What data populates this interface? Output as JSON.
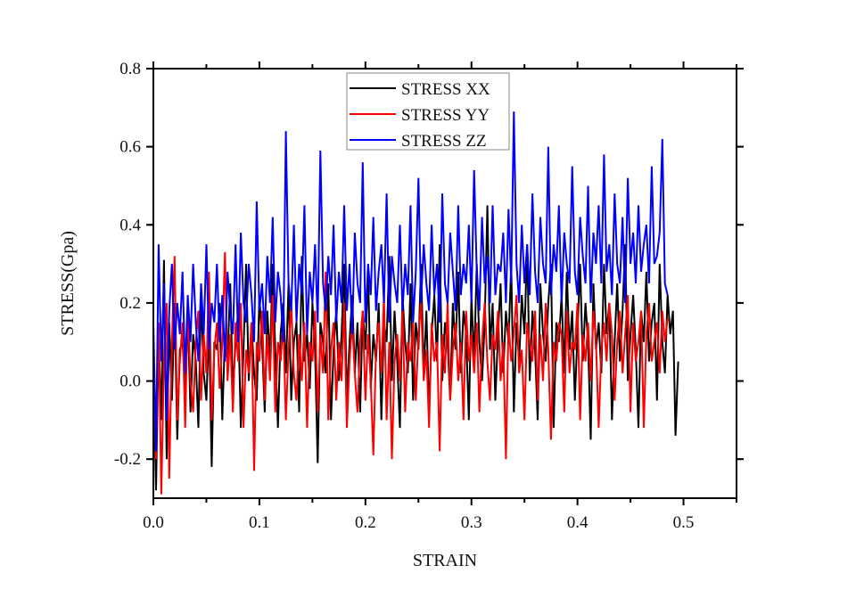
{
  "chart_data": {
    "type": "line",
    "title": "",
    "xlabel": "STRAIN",
    "ylabel": "STRESS(Gpa)",
    "xlim": [
      0.0,
      0.55
    ],
    "ylim": [
      -0.3,
      0.8
    ],
    "xticks": [
      0.0,
      0.1,
      0.2,
      0.3,
      0.4,
      0.5
    ],
    "xtick_labels": [
      "0.0",
      "0.1",
      "0.2",
      "0.3",
      "0.4",
      "0.5"
    ],
    "yticks": [
      -0.2,
      0.0,
      0.2,
      0.4,
      0.6,
      0.8
    ],
    "ytick_labels": [
      "-0.2",
      "0.0",
      "0.2",
      "0.4",
      "0.6",
      "0.8"
    ],
    "grid": false,
    "legend_position": "top-center",
    "x_start": 0.0,
    "x_step": 0.0025,
    "series": [
      {
        "name": "STRESS XX",
        "color": "#000000",
        "values": [
          0.05,
          -0.28,
          0.12,
          -0.1,
          0.31,
          -0.2,
          0.15,
          -0.05,
          0.2,
          -0.15,
          0.08,
          0.1,
          -0.02,
          0.18,
          -0.08,
          0.12,
          0.05,
          -0.12,
          0.22,
          0.02,
          -0.05,
          0.15,
          -0.22,
          0.1,
          0.08,
          0.2,
          -0.1,
          0.12,
          0.05,
          0.25,
          -0.03,
          0.1,
          0.18,
          -0.12,
          0.08,
          0.3,
          0.0,
          0.15,
          0.02,
          -0.05,
          0.22,
          0.1,
          -0.08,
          0.18,
          0.05,
          0.3,
          0.08,
          -0.12,
          0.12,
          0.2,
          0.02,
          0.25,
          -0.05,
          0.1,
          0.15,
          -0.08,
          0.32,
          0.05,
          0.12,
          -0.02,
          0.2,
          0.08,
          -0.21,
          0.15,
          0.1,
          0.02,
          0.25,
          -0.1,
          0.08,
          0.18,
          0.0,
          0.12,
          0.3,
          -0.05,
          0.1,
          0.22,
          0.02,
          0.15,
          -0.08,
          0.18,
          0.08,
          0.28,
          -0.02,
          0.12,
          0.05,
          0.2,
          -0.1,
          0.15,
          0.1,
          0.32,
          0.0,
          0.18,
          0.05,
          -0.12,
          0.22,
          0.1,
          0.02,
          0.25,
          -0.05,
          0.15,
          0.08,
          0.3,
          0.02,
          0.18,
          -0.08,
          0.12,
          0.22,
          0.05,
          0.35,
          0.0,
          0.15,
          0.1,
          -0.05,
          0.2,
          0.08,
          0.28,
          0.02,
          0.18,
          0.12,
          -0.1,
          0.22,
          0.05,
          0.3,
          0.1,
          0.0,
          0.15,
          0.45,
          0.08,
          0.2,
          -0.05,
          0.12,
          0.25,
          0.02,
          0.18,
          0.1,
          0.3,
          -0.08,
          0.15,
          0.05,
          0.22,
          0.12,
          0.35,
          0.0,
          0.18,
          0.08,
          -0.1,
          0.25,
          0.12,
          0.05,
          0.2,
          0.3,
          -0.12,
          0.15,
          0.1,
          0.22,
          0.02,
          0.28,
          0.08,
          0.18,
          -0.05,
          0.12,
          0.3,
          0.05,
          0.2,
          0.1,
          -0.15,
          0.25,
          0.08,
          0.15,
          0.02,
          0.3,
          0.12,
          0.2,
          -0.1,
          0.1,
          0.25,
          0.05,
          0.18,
          0.35,
          0.0,
          0.12,
          0.22,
          0.08,
          -0.12,
          0.18,
          0.1,
          0.28,
          0.05,
          0.15,
          0.2,
          -0.05,
          0.3,
          0.1,
          0.02,
          0.22,
          0.12,
          0.18,
          -0.14,
          0.05
        ]
      },
      {
        "name": "STRESS YY",
        "color": "#ff0000",
        "values": [
          0.1,
          -0.2,
          0.15,
          -0.29,
          0.05,
          0.2,
          -0.25,
          0.1,
          0.32,
          -0.1,
          0.05,
          0.15,
          -0.12,
          0.2,
          0.0,
          -0.08,
          0.1,
          0.18,
          -0.05,
          0.12,
          0.02,
          0.28,
          -0.1,
          0.08,
          0.15,
          -0.02,
          0.1,
          0.33,
          0.0,
          0.12,
          -0.08,
          0.15,
          0.05,
          0.2,
          -0.12,
          0.08,
          0.02,
          0.15,
          -0.23,
          0.1,
          0.05,
          0.18,
          -0.05,
          0.12,
          0.0,
          0.22,
          -0.08,
          0.1,
          0.05,
          0.15,
          -0.1,
          0.08,
          0.2,
          0.02,
          -0.05,
          0.12,
          0.0,
          0.15,
          -0.12,
          0.1,
          0.05,
          0.18,
          -0.08,
          0.12,
          0.02,
          0.28,
          -0.1,
          0.08,
          0.15,
          -0.05,
          0.1,
          0.0,
          0.2,
          -0.12,
          0.05,
          0.15,
          0.02,
          -0.08,
          0.1,
          0.18,
          -0.05,
          0.12,
          0.0,
          -0.19,
          0.08,
          0.15,
          0.02,
          0.22,
          -0.1,
          0.1,
          -0.2,
          0.05,
          0.12,
          0.0,
          0.18,
          -0.08,
          0.1,
          0.05,
          0.15,
          -0.05,
          0.12,
          0.2,
          0.0,
          0.08,
          -0.12,
          0.15,
          0.05,
          0.1,
          -0.18,
          0.12,
          0.02,
          0.2,
          -0.05,
          0.08,
          0.15,
          0.0,
          0.1,
          -0.1,
          0.18,
          0.05,
          0.12,
          0.02,
          0.15,
          -0.08,
          0.1,
          0.2,
          0.05,
          -0.05,
          0.12,
          0.08,
          0.18,
          0.0,
          0.1,
          -0.2,
          0.15,
          0.05,
          0.12,
          0.22,
          0.02,
          0.08,
          -0.1,
          0.15,
          0.1,
          0.05,
          0.18,
          -0.05,
          0.12,
          0.0,
          0.2,
          0.08,
          -0.15,
          0.1,
          0.05,
          0.15,
          0.12,
          -0.08,
          0.18,
          0.02,
          0.1,
          0.08,
          0.2,
          -0.1,
          0.12,
          0.05,
          0.15,
          0.0,
          0.18,
          0.1,
          -0.12,
          0.08,
          0.15,
          0.05,
          0.2,
          0.12,
          -0.05,
          0.1,
          0.18,
          0.02,
          0.12,
          0.22,
          -0.08,
          0.15,
          0.05,
          0.1,
          0.18,
          -0.12,
          0.12,
          0.2,
          0.05,
          0.1,
          0.15,
          0.02,
          0.18,
          0.1,
          0.16
        ]
      },
      {
        "name": "STRESS ZZ",
        "color": "#0000ff",
        "values": [
          0.15,
          -0.18,
          0.35,
          0.05,
          0.25,
          -0.1,
          0.18,
          0.3,
          0.08,
          0.2,
          0.12,
          0.28,
          0.02,
          0.22,
          0.1,
          0.3,
          0.15,
          0.05,
          0.25,
          0.12,
          0.35,
          0.08,
          0.2,
          0.15,
          0.3,
          0.1,
          0.22,
          0.05,
          0.28,
          0.18,
          0.12,
          0.35,
          0.1,
          0.38,
          0.2,
          0.15,
          0.3,
          0.22,
          0.1,
          0.46,
          0.18,
          0.25,
          0.12,
          0.32,
          0.2,
          0.42,
          0.15,
          0.28,
          0.22,
          0.1,
          0.64,
          0.25,
          0.18,
          0.4,
          0.15,
          0.3,
          0.22,
          0.45,
          0.12,
          0.28,
          0.2,
          0.35,
          0.15,
          0.59,
          0.25,
          0.18,
          0.32,
          0.22,
          0.4,
          0.15,
          0.28,
          0.2,
          0.45,
          0.18,
          0.3,
          0.12,
          0.38,
          0.25,
          0.2,
          0.56,
          0.15,
          0.3,
          0.22,
          0.42,
          0.18,
          0.28,
          0.35,
          0.2,
          0.48,
          0.15,
          0.32,
          0.25,
          0.2,
          0.4,
          0.18,
          0.3,
          0.22,
          0.45,
          0.15,
          0.28,
          0.52,
          0.2,
          0.35,
          0.25,
          0.18,
          0.4,
          0.22,
          0.3,
          0.15,
          0.48,
          0.25,
          0.2,
          0.38,
          0.28,
          0.18,
          0.45,
          0.22,
          0.3,
          0.25,
          0.4,
          0.2,
          0.54,
          0.28,
          0.18,
          0.42,
          0.25,
          0.32,
          0.2,
          0.45,
          0.22,
          0.3,
          0.28,
          0.38,
          0.2,
          0.44,
          0.25,
          0.69,
          0.3,
          0.2,
          0.4,
          0.25,
          0.35,
          0.22,
          0.48,
          0.28,
          0.2,
          0.42,
          0.3,
          0.25,
          0.6,
          0.22,
          0.35,
          0.28,
          0.45,
          0.2,
          0.38,
          0.3,
          0.25,
          0.55,
          0.28,
          0.22,
          0.42,
          0.32,
          0.25,
          0.5,
          0.2,
          0.38,
          0.3,
          0.45,
          0.25,
          0.58,
          0.28,
          0.35,
          0.22,
          0.48,
          0.3,
          0.25,
          0.42,
          0.2,
          0.52,
          0.3,
          0.38,
          0.25,
          0.45,
          0.28,
          0.35,
          0.4,
          0.25,
          0.55,
          0.3,
          0.32,
          0.38,
          0.62,
          0.25,
          0.22
        ]
      }
    ]
  }
}
